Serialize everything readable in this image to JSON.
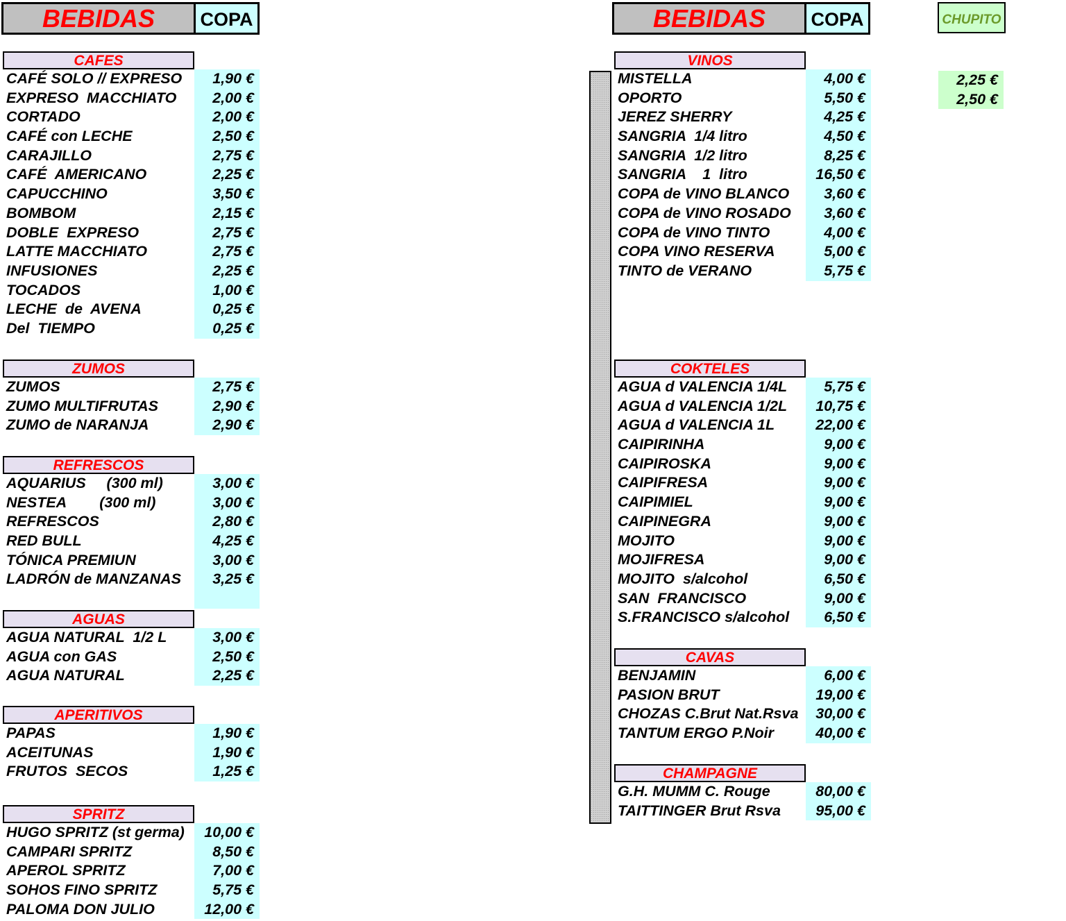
{
  "left_header": {
    "title": "BEBIDAS",
    "copa": "COPA"
  },
  "right_header": {
    "title": "BEBIDAS",
    "copa": "COPA",
    "chupito": "CHUPITO"
  },
  "sections": {
    "cafes": {
      "title": "CAFES",
      "items": [
        {
          "name": "CAFÉ SOLO // EXPRESO",
          "price": "1,90 €"
        },
        {
          "name": "EXPRESO  MACCHIATO",
          "price": "2,00 €"
        },
        {
          "name": "CORTADO",
          "price": "2,00 €"
        },
        {
          "name": "CAFÉ con LECHE",
          "price": "2,50 €"
        },
        {
          "name": "CARAJILLO",
          "price": "2,75 €"
        },
        {
          "name": "CAFÉ  AMERICANO",
          "price": "2,25 €"
        },
        {
          "name": "CAPUCCHINO",
          "price": "3,50 €"
        },
        {
          "name": "BOMBOM",
          "price": "2,15 €"
        },
        {
          "name": "DOBLE  EXPRESO",
          "price": "2,75 €"
        },
        {
          "name": "LATTE MACCHIATO",
          "price": "2,75 €"
        },
        {
          "name": "INFUSIONES",
          "price": "2,25 €"
        },
        {
          "name": "TOCADOS",
          "price": "1,00 €"
        },
        {
          "name": "LECHE  de  AVENA",
          "price": "0,25 €"
        },
        {
          "name": "Del  TIEMPO",
          "price": "0,25 €"
        }
      ]
    },
    "zumos": {
      "title": "ZUMOS",
      "items": [
        {
          "name": "ZUMOS",
          "price": "2,75 €"
        },
        {
          "name": "ZUMO MULTIFRUTAS",
          "price": "2,90 €"
        },
        {
          "name": "ZUMO de NARANJA",
          "price": "2,90 €"
        }
      ]
    },
    "refrescos": {
      "title": "REFRESCOS",
      "items": [
        {
          "name": "AQUARIUS     (300 ml)",
          "price": "3,00 €"
        },
        {
          "name": "NESTEA        (300 ml)",
          "price": "3,00 €"
        },
        {
          "name": "REFRESCOS",
          "price": "2,80 €"
        },
        {
          "name": "RED BULL",
          "price": "4,25 €"
        },
        {
          "name": "TÓNICA PREMIUN",
          "price": "3,00 €"
        },
        {
          "name": "LADRÓN de MANZANAS",
          "price": "3,25 €"
        }
      ]
    },
    "aguas": {
      "title": "AGUAS",
      "items": [
        {
          "name": "AGUA NATURAL  1/2 L",
          "price": "3,00 €"
        },
        {
          "name": "AGUA con GAS",
          "price": "2,50 €"
        },
        {
          "name": "AGUA NATURAL",
          "price": "2,25 €"
        }
      ]
    },
    "aperitivos": {
      "title": "APERITIVOS",
      "items": [
        {
          "name": "PAPAS",
          "price": "1,90 €"
        },
        {
          "name": "ACEITUNAS",
          "price": "1,90 €"
        },
        {
          "name": "FRUTOS  SECOS",
          "price": "1,25 €"
        }
      ]
    },
    "spritz": {
      "title": "SPRITZ",
      "items": [
        {
          "name": "HUGO SPRITZ (st germa)",
          "price": "10,00 €"
        },
        {
          "name": "CAMPARI SPRITZ",
          "price": "8,50 €"
        },
        {
          "name": "APEROL SPRITZ",
          "price": "7,00 €"
        },
        {
          "name": "SOHOS FINO SPRITZ",
          "price": "5,75 €"
        },
        {
          "name": "PALOMA DON JULIO",
          "price": "12,00 €"
        }
      ]
    },
    "vinos": {
      "title": "VINOS",
      "items": [
        {
          "name": "MISTELLA",
          "price": "4,00 €",
          "chupito": "2,25 €"
        },
        {
          "name": "OPORTO",
          "price": "5,50 €",
          "chupito": "2,50 €"
        },
        {
          "name": "JEREZ SHERRY",
          "price": "4,25 €"
        },
        {
          "name": "SANGRIA  1/4 litro",
          "price": "4,50 €"
        },
        {
          "name": "SANGRIA  1/2 litro",
          "price": "8,25 €"
        },
        {
          "name": "SANGRIA    1  litro",
          "price": "16,50 €"
        },
        {
          "name": "COPA de VINO BLANCO",
          "price": "3,60 €"
        },
        {
          "name": "COPA de VINO ROSADO",
          "price": "3,60 €"
        },
        {
          "name": "COPA de VINO TINTO",
          "price": "4,00 €"
        },
        {
          "name": "COPA VINO RESERVA",
          "price": "5,00 €"
        },
        {
          "name": "TINTO de VERANO",
          "price": "5,75 €"
        }
      ]
    },
    "cokteles": {
      "title": "COKTELES",
      "items": [
        {
          "name": "AGUA d VALENCIA 1/4L",
          "price": "5,75 €"
        },
        {
          "name": "AGUA d VALENCIA 1/2L",
          "price": "10,75 €"
        },
        {
          "name": "AGUA d VALENCIA 1L",
          "price": "22,00 €"
        },
        {
          "name": "CAIPIRINHA",
          "price": "9,00 €"
        },
        {
          "name": "CAIPIROSKA",
          "price": "9,00 €"
        },
        {
          "name": "CAIPIFRESA",
          "price": "9,00 €"
        },
        {
          "name": "CAIPIMIEL",
          "price": "9,00 €"
        },
        {
          "name": "CAIPINEGRA",
          "price": "9,00 €"
        },
        {
          "name": "MOJITO",
          "price": "9,00 €"
        },
        {
          "name": "MOJIFRESA",
          "price": "9,00 €"
        },
        {
          "name": "MOJITO  s/alcohol",
          "price": "6,50 €"
        },
        {
          "name": "SAN  FRANCISCO",
          "price": "9,00 €"
        },
        {
          "name": "S.FRANCISCO s/alcohol",
          "price": "6,50 €"
        }
      ]
    },
    "cavas": {
      "title": "CAVAS",
      "items": [
        {
          "name": "BENJAMIN",
          "price": "6,00 €"
        },
        {
          "name": "PASION BRUT",
          "price": "19,00 €"
        },
        {
          "name": "CHOZAS C.Brut Nat.Rsva",
          "price": "30,00 €"
        },
        {
          "name": "TANTUM ERGO P.Noir",
          "price": "40,00 €"
        }
      ]
    },
    "champagne": {
      "title": "CHAMPAGNE",
      "items": [
        {
          "name": "G.H. MUMM C. Rouge",
          "price": "80,00 €"
        },
        {
          "name": "TAITTINGER Brut Rsva",
          "price": "95,00 €"
        }
      ]
    }
  },
  "colors": {
    "title_red": "#ff0000",
    "copa_cyan": "#ccffff",
    "chupito_green": "#ccffcc",
    "section_lavender": "#e6e0f0",
    "header_grey": "#c0c0c0"
  }
}
